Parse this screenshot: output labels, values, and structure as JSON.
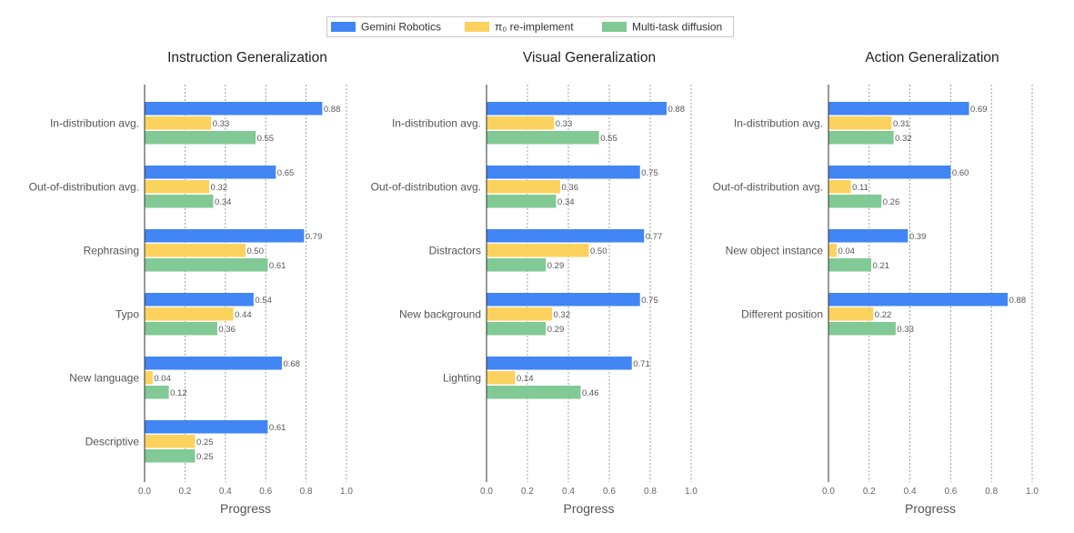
{
  "colors": {
    "gemini": "#4285f4",
    "pi0": "#fbd25e",
    "diffusion": "#81c995"
  },
  "legend": {
    "placement": "top-center",
    "entries": [
      {
        "key": "gemini",
        "label": "Gemini Robotics"
      },
      {
        "key": "pi0",
        "label": "π₀ re-implement"
      },
      {
        "key": "diffusion",
        "label": "Multi-task diffusion"
      }
    ]
  },
  "chart_data": [
    {
      "type": "bar",
      "orientation": "horizontal",
      "title": "Instruction Generalization",
      "xlabel": "Progress",
      "xlim": [
        0,
        1
      ],
      "xticks": [
        "0.0",
        "0.2",
        "0.4",
        "0.6",
        "0.8",
        "1.0"
      ],
      "grid": "vertical dashed",
      "categories": [
        "In-distribution avg.",
        "Out-of-distribution avg.",
        "Rephrasing",
        "Typo",
        "New language",
        "Descriptive"
      ],
      "series": [
        {
          "name": "Gemini Robotics",
          "key": "gemini",
          "values": [
            0.88,
            0.65,
            0.79,
            0.54,
            0.68,
            0.61
          ],
          "labels": [
            "0.88",
            "0.65",
            "0.79",
            "0.54",
            "0.68",
            "0.61"
          ]
        },
        {
          "name": "π₀ re-implement",
          "key": "pi0",
          "values": [
            0.33,
            0.32,
            0.5,
            0.44,
            0.04,
            0.25
          ],
          "labels": [
            "0.33",
            "0.32",
            "0.50",
            "0.44",
            "0.04",
            "0.25"
          ]
        },
        {
          "name": "Multi-task diffusion",
          "key": "diffusion",
          "values": [
            0.55,
            0.34,
            0.61,
            0.36,
            0.12,
            0.25
          ],
          "labels": [
            "0.55",
            "0.34",
            "0.61",
            "0.36",
            "0.12",
            "0.25"
          ]
        }
      ]
    },
    {
      "type": "bar",
      "orientation": "horizontal",
      "title": "Visual Generalization",
      "xlabel": "Progress",
      "xlim": [
        0,
        1
      ],
      "xticks": [
        "0.0",
        "0.2",
        "0.4",
        "0.6",
        "0.8",
        "1.0"
      ],
      "grid": "vertical dashed",
      "categories": [
        "In-distribution avg.",
        "Out-of-distribution avg.",
        "Distractors",
        "New background",
        "Lighting"
      ],
      "series": [
        {
          "name": "Gemini Robotics",
          "key": "gemini",
          "values": [
            0.88,
            0.75,
            0.77,
            0.75,
            0.71
          ],
          "labels": [
            "0.88",
            "0.75",
            "0.77",
            "0.75",
            "0.71"
          ]
        },
        {
          "name": "π₀ re-implement",
          "key": "pi0",
          "values": [
            0.33,
            0.36,
            0.5,
            0.32,
            0.14
          ],
          "labels": [
            "0.33",
            "0.36",
            "0.50",
            "0.32",
            "0.14"
          ]
        },
        {
          "name": "Multi-task diffusion",
          "key": "diffusion",
          "values": [
            0.55,
            0.34,
            0.29,
            0.29,
            0.46
          ],
          "labels": [
            "0.55",
            "0.34",
            "0.29",
            "0.29",
            "0.46"
          ]
        }
      ]
    },
    {
      "type": "bar",
      "orientation": "horizontal",
      "title": "Action Generalization",
      "xlabel": "Progress",
      "xlim": [
        0,
        1
      ],
      "xticks": [
        "0.0",
        "0.2",
        "0.4",
        "0.6",
        "0.8",
        "1.0"
      ],
      "grid": "vertical dashed",
      "categories": [
        "In-distribution avg.",
        "Out-of-distribution avg.",
        "New object instance",
        "Different position"
      ],
      "series": [
        {
          "name": "Gemini Robotics",
          "key": "gemini",
          "values": [
            0.69,
            0.6,
            0.39,
            0.88
          ],
          "labels": [
            "0.69",
            "0.60",
            "0.39",
            "0.88"
          ]
        },
        {
          "name": "π₀ re-implement",
          "key": "pi0",
          "values": [
            0.31,
            0.11,
            0.04,
            0.22
          ],
          "labels": [
            "0.31",
            "0.11",
            "0.04",
            "0.22"
          ]
        },
        {
          "name": "Multi-task diffusion",
          "key": "diffusion",
          "values": [
            0.32,
            0.26,
            0.21,
            0.33
          ],
          "labels": [
            "0.32",
            "0.26",
            "0.21",
            "0.33"
          ]
        }
      ]
    }
  ]
}
